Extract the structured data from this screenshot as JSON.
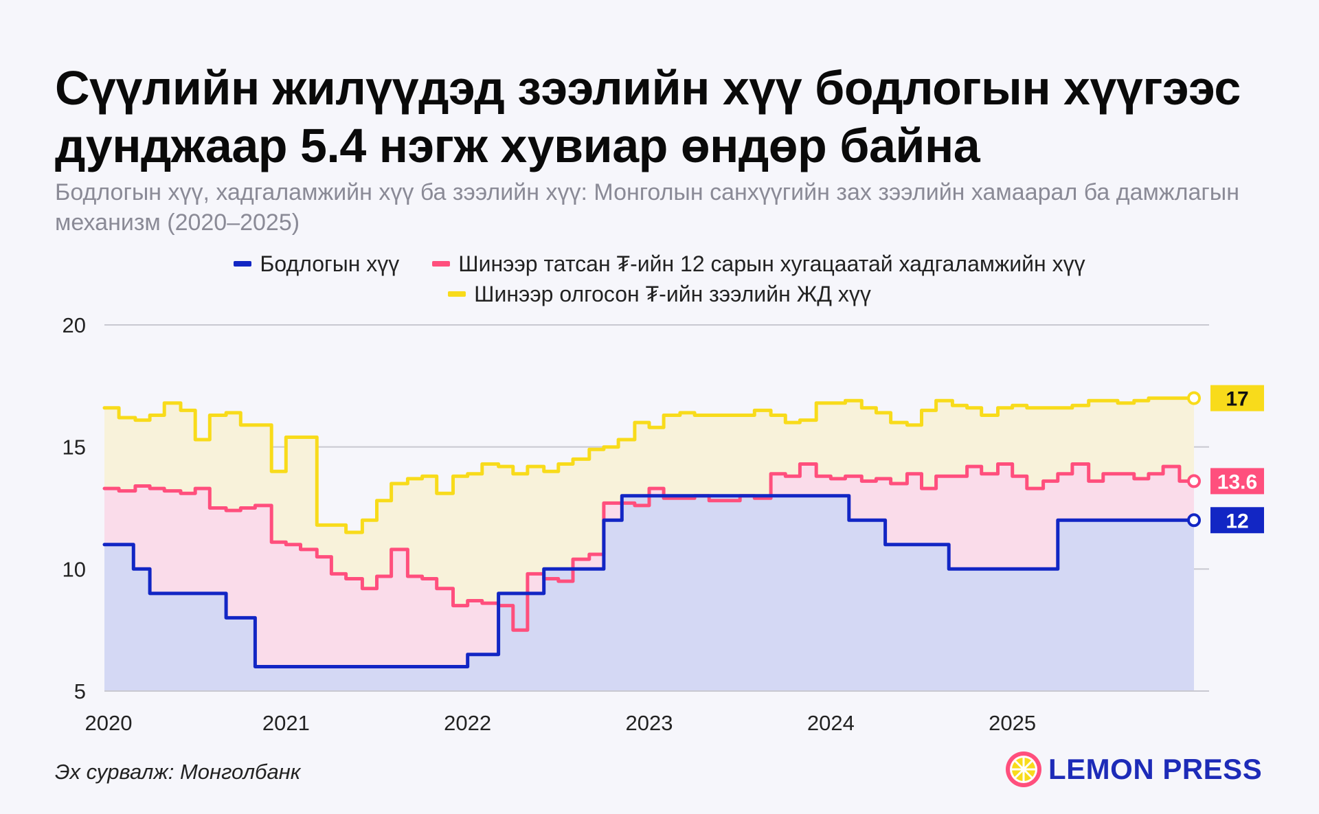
{
  "title": "Сүүлийн жилүүдэд зээлийн хүү бодлогын хүүгээс дунджаар 5.4 нэгж хувиар өндөр байна",
  "subtitle": "Бодлогын хүү, хадгаламжийн хүү ба зээлийн хүү: Монголын санхүүгийн зах зээлийн хамаарал ба дамжлагын механизм (2020–2025)",
  "source": "Эх сурвалж: Монголбанк",
  "logo": {
    "text": "LEMON PRESS",
    "icon": "lemon-slice-icon"
  },
  "colors": {
    "policy": "#1226c4",
    "deposit": "#ff4f7d",
    "loan": "#f8db1b",
    "policy_fill": "#d4d8f4",
    "deposit_fill": "#fadcea",
    "loan_fill": "#f8f2da",
    "grid": "#c8c8d0"
  },
  "chart_data": {
    "type": "line",
    "step": true,
    "title": "",
    "xlabel": "",
    "ylabel": "",
    "ylim": [
      5,
      20
    ],
    "yticks": [
      5,
      10,
      15,
      20
    ],
    "xlim": [
      2020.0,
      2026.0
    ],
    "xticks": [
      {
        "value": 2020.0,
        "label": "2020"
      },
      {
        "value": 2021.0,
        "label": "2021"
      },
      {
        "value": 2022.0,
        "label": "2022"
      },
      {
        "value": 2023.0,
        "label": "2023"
      },
      {
        "value": 2024.0,
        "label": "2024"
      },
      {
        "value": 2025.0,
        "label": "2025"
      }
    ],
    "grid": true,
    "legend_position": "top-center",
    "series": [
      {
        "key": "policy",
        "name": "Бодлогын хүү",
        "end_label": "12",
        "x": [
          2020.0,
          2020.16,
          2020.25,
          2020.67,
          2020.83,
          2021.93,
          2022.0,
          2022.17,
          2022.33,
          2022.42,
          2022.58,
          2022.75,
          2022.85,
          2023.5,
          2024.1,
          2024.3,
          2024.5,
          2024.65,
          2024.85,
          2025.0,
          2025.25,
          2025.6,
          2026.0
        ],
        "values": [
          11,
          10,
          9,
          8,
          6,
          6,
          6.5,
          9,
          9,
          10,
          10,
          12,
          13,
          13,
          12,
          11,
          11,
          10,
          10,
          10,
          12,
          12,
          12
        ]
      },
      {
        "key": "deposit",
        "name": "Шинээр татсан ₮-ийн 12 сарын хугацаатай хадгаламжийн хүү",
        "end_label": "13.6",
        "x": [
          2020.0,
          2020.08,
          2020.17,
          2020.25,
          2020.33,
          2020.42,
          2020.5,
          2020.58,
          2020.67,
          2020.75,
          2020.83,
          2020.92,
          2021.0,
          2021.08,
          2021.17,
          2021.25,
          2021.33,
          2021.42,
          2021.5,
          2021.58,
          2021.67,
          2021.75,
          2021.83,
          2021.92,
          2022.0,
          2022.08,
          2022.17,
          2022.25,
          2022.33,
          2022.42,
          2022.5,
          2022.58,
          2022.67,
          2022.75,
          2022.83,
          2022.92,
          2023.0,
          2023.08,
          2023.17,
          2023.25,
          2023.33,
          2023.42,
          2023.5,
          2023.58,
          2023.67,
          2023.75,
          2023.83,
          2023.92,
          2024.0,
          2024.08,
          2024.17,
          2024.25,
          2024.33,
          2024.42,
          2024.5,
          2024.58,
          2024.67,
          2024.75,
          2024.83,
          2024.92,
          2025.0,
          2025.08,
          2025.17,
          2025.25,
          2025.33,
          2025.42,
          2025.5,
          2025.58,
          2025.67,
          2025.75,
          2025.83,
          2025.92,
          2026.0
        ],
        "values": [
          13.3,
          13.2,
          13.4,
          13.3,
          13.2,
          13.1,
          13.3,
          12.5,
          12.4,
          12.5,
          12.6,
          11.1,
          11.0,
          10.8,
          10.5,
          9.8,
          9.6,
          9.2,
          9.7,
          10.8,
          9.7,
          9.6,
          9.2,
          8.5,
          8.7,
          8.6,
          8.5,
          7.5,
          9.8,
          9.6,
          9.5,
          10.4,
          10.6,
          12.7,
          12.7,
          12.6,
          13.3,
          12.9,
          12.9,
          13.0,
          12.8,
          12.8,
          13.0,
          12.9,
          13.9,
          13.8,
          14.3,
          13.8,
          13.7,
          13.8,
          13.6,
          13.7,
          13.5,
          13.9,
          13.3,
          13.8,
          13.8,
          14.2,
          13.9,
          14.3,
          13.8,
          13.3,
          13.6,
          13.9,
          14.3,
          13.6,
          13.9,
          13.9,
          13.7,
          13.9,
          14.2,
          13.6,
          13.6
        ]
      },
      {
        "key": "loan",
        "name": "Шинээр олгосон ₮-ийн зээлийн ЖД хүү",
        "end_label": "17",
        "x": [
          2020.0,
          2020.08,
          2020.17,
          2020.25,
          2020.33,
          2020.42,
          2020.5,
          2020.58,
          2020.67,
          2020.75,
          2020.83,
          2020.92,
          2021.0,
          2021.08,
          2021.17,
          2021.25,
          2021.33,
          2021.42,
          2021.5,
          2021.58,
          2021.67,
          2021.75,
          2021.83,
          2021.92,
          2022.0,
          2022.08,
          2022.17,
          2022.25,
          2022.33,
          2022.42,
          2022.5,
          2022.58,
          2022.67,
          2022.75,
          2022.83,
          2022.92,
          2023.0,
          2023.08,
          2023.17,
          2023.25,
          2023.33,
          2023.42,
          2023.5,
          2023.58,
          2023.67,
          2023.75,
          2023.83,
          2023.92,
          2024.0,
          2024.08,
          2024.17,
          2024.25,
          2024.33,
          2024.42,
          2024.5,
          2024.58,
          2024.67,
          2024.75,
          2024.83,
          2024.92,
          2025.0,
          2025.08,
          2025.17,
          2025.25,
          2025.33,
          2025.42,
          2025.5,
          2025.58,
          2025.67,
          2025.75,
          2025.83,
          2025.92,
          2026.0
        ],
        "values": [
          16.6,
          16.2,
          16.1,
          16.3,
          16.8,
          16.5,
          15.3,
          16.3,
          16.4,
          15.9,
          15.9,
          14.0,
          15.4,
          15.4,
          11.8,
          11.8,
          11.5,
          12.0,
          12.8,
          13.5,
          13.7,
          13.8,
          13.1,
          13.8,
          13.9,
          14.3,
          14.2,
          13.9,
          14.2,
          14.0,
          14.3,
          14.5,
          14.9,
          15.0,
          15.3,
          16.0,
          15.8,
          16.3,
          16.4,
          16.3,
          16.3,
          16.3,
          16.3,
          16.5,
          16.3,
          16.0,
          16.1,
          16.8,
          16.8,
          16.9,
          16.6,
          16.4,
          16.0,
          15.9,
          16.5,
          16.9,
          16.7,
          16.6,
          16.3,
          16.6,
          16.7,
          16.6,
          16.6,
          16.6,
          16.7,
          16.9,
          16.9,
          16.8,
          16.9,
          17.0,
          17.0,
          17.0,
          17.0
        ]
      }
    ]
  }
}
